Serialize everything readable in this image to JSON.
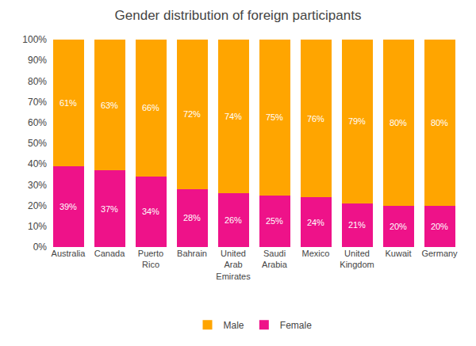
{
  "chart_data": {
    "type": "bar",
    "title": "Gender distribution of foreign participants",
    "categories": [
      "Australia",
      "Canada",
      "Puerto\nRico",
      "Bahrain",
      "United\nArab\nEmirates",
      "Saudi\nArabia",
      "Mexico",
      "United\nKingdom",
      "Kuwait",
      "Germany"
    ],
    "series": [
      {
        "name": "Female",
        "color": "#EE1289",
        "values": [
          39,
          37,
          34,
          28,
          26,
          25,
          24,
          21,
          20,
          20
        ],
        "value_labels": [
          "39%",
          "37%",
          "34%",
          "28%",
          "26%",
          "25%",
          "24%",
          "21%",
          "20%",
          "20%"
        ]
      },
      {
        "name": "Male",
        "color": "#FFA500",
        "values": [
          61,
          63,
          66,
          72,
          74,
          75,
          76,
          79,
          80,
          80
        ],
        "value_labels": [
          "61%",
          "63%",
          "66%",
          "72%",
          "74%",
          "75%",
          "76%",
          "79%",
          "80%",
          "80%"
        ]
      }
    ],
    "ylim": [
      0,
      100
    ],
    "yticks": [
      {
        "value": 0,
        "label": "0%"
      },
      {
        "value": 10,
        "label": "10%"
      },
      {
        "value": 20,
        "label": "20%"
      },
      {
        "value": 30,
        "label": "30%"
      },
      {
        "value": 40,
        "label": "40%"
      },
      {
        "value": 50,
        "label": "50%"
      },
      {
        "value": 60,
        "label": "60%"
      },
      {
        "value": 70,
        "label": "70%"
      },
      {
        "value": 80,
        "label": "80%"
      },
      {
        "value": 90,
        "label": "90%"
      },
      {
        "value": 100,
        "label": "100%"
      }
    ],
    "stacked": true,
    "data_labels": true,
    "grid": false,
    "legend": "bottom"
  }
}
